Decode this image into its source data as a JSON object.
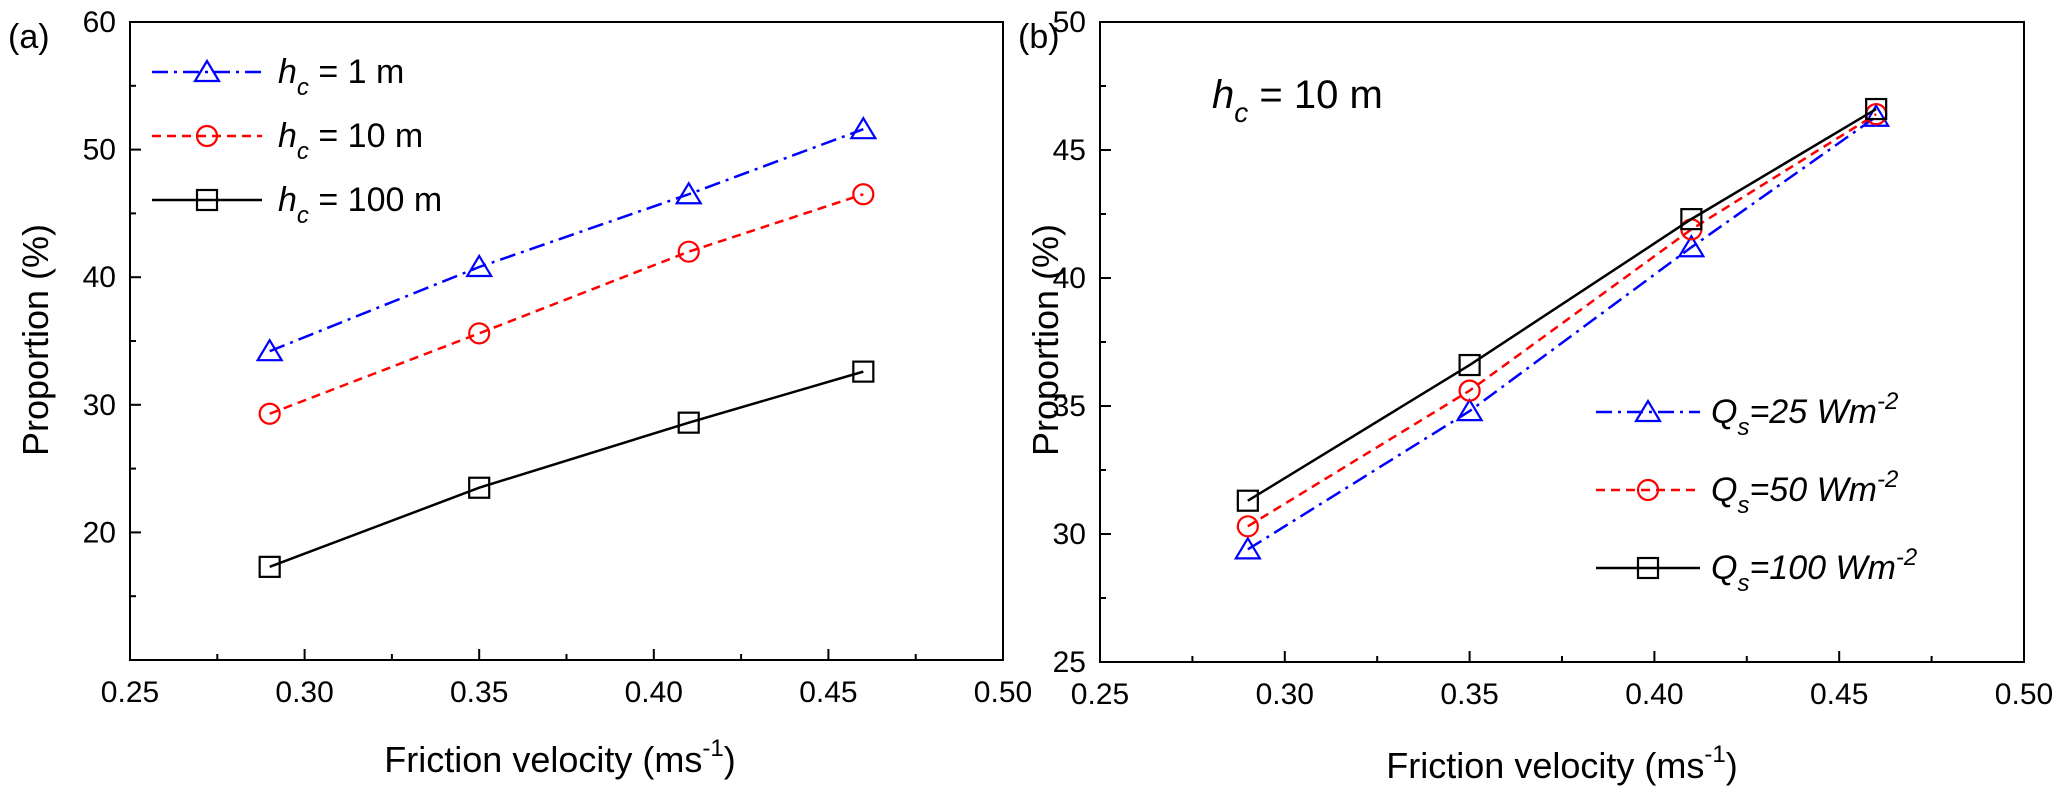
{
  "chart_data": [
    {
      "type": "line",
      "panel_label": "(a)",
      "xlabel": "Friction velocity (ms",
      "xlabel_sup": "-1",
      "xlabel_close": ")",
      "ylabel": "Proportion (%)",
      "xlim": [
        0.25,
        0.5
      ],
      "ylim": [
        10,
        60
      ],
      "xticks": [
        "0.25",
        "0.30",
        "0.35",
        "0.40",
        "0.45",
        "0.50"
      ],
      "yticks": [
        "20",
        "30",
        "40",
        "50",
        "60"
      ],
      "legend_position": "top-left",
      "x": [
        0.29,
        0.35,
        0.41,
        0.46
      ],
      "series": [
        {
          "name": "1 m",
          "legend_var": "h",
          "legend_sub": "c",
          "legend_eq": " = ",
          "legend_val": "1 m",
          "values": [
            34.2,
            40.8,
            46.5,
            51.6
          ],
          "color": "#0000ff",
          "marker": "triangle",
          "dash": "dashdot"
        },
        {
          "name": "10 m",
          "legend_var": "h",
          "legend_sub": "c",
          "legend_eq": " = ",
          "legend_val": "10 m",
          "values": [
            29.3,
            35.6,
            42.0,
            46.5
          ],
          "color": "#ff0000",
          "marker": "circle",
          "dash": "dash"
        },
        {
          "name": "100 m",
          "legend_var": "h",
          "legend_sub": "c",
          "legend_eq": " = ",
          "legend_val": "100 m",
          "values": [
            17.3,
            23.5,
            28.6,
            32.6
          ],
          "color": "#000000",
          "marker": "square",
          "dash": "solid"
        }
      ]
    },
    {
      "type": "line",
      "panel_label": "(b)",
      "annotation": {
        "var": "h",
        "sub": "c",
        "text": " = 10 m"
      },
      "xlabel": "Friction velocity (ms",
      "xlabel_sup": "-1",
      "xlabel_close": ")",
      "ylabel": "Proportion (%)",
      "xlim": [
        0.25,
        0.5
      ],
      "ylim": [
        25,
        50
      ],
      "xticks": [
        "0.25",
        "0.30",
        "0.35",
        "0.40",
        "0.45",
        "0.50"
      ],
      "yticks": [
        "25",
        "30",
        "35",
        "40",
        "45",
        "50"
      ],
      "legend_position": "bottom-right",
      "x": [
        0.29,
        0.35,
        0.41,
        0.46
      ],
      "series": [
        {
          "name": "Qs=25",
          "legend_var": "Q",
          "legend_sub": "s",
          "legend_eq": "=",
          "legend_val": "25 Wm",
          "legend_sup": "-2",
          "values": [
            29.4,
            34.8,
            41.2,
            46.3
          ],
          "color": "#0000ff",
          "marker": "triangle",
          "dash": "dashdot"
        },
        {
          "name": "Qs=50",
          "legend_var": "Q",
          "legend_sub": "s",
          "legend_eq": "=",
          "legend_val": "50 Wm",
          "legend_sup": "-2",
          "values": [
            30.3,
            35.6,
            41.9,
            46.4
          ],
          "color": "#ff0000",
          "marker": "circle",
          "dash": "dash"
        },
        {
          "name": "Qs=100",
          "legend_var": "Q",
          "legend_sub": "s",
          "legend_eq": "=",
          "legend_val": "100 Wm",
          "legend_sup": "-2",
          "values": [
            31.3,
            36.6,
            42.3,
            46.6
          ],
          "color": "#000000",
          "marker": "square",
          "dash": "solid"
        }
      ]
    }
  ]
}
